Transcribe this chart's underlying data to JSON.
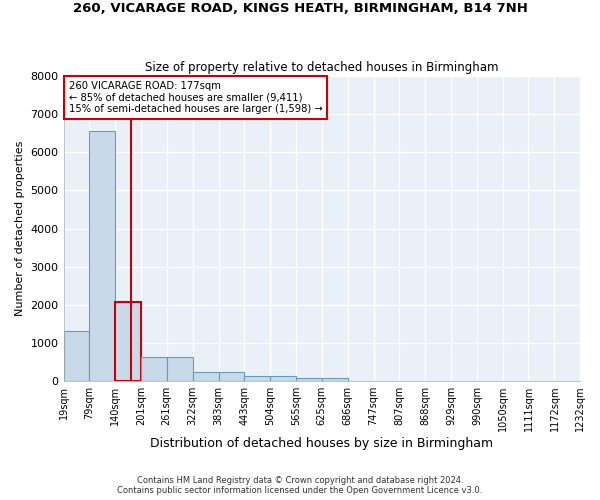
{
  "title1": "260, VICARAGE ROAD, KINGS HEATH, BIRMINGHAM, B14 7NH",
  "title2": "Size of property relative to detached houses in Birmingham",
  "xlabel": "Distribution of detached houses by size in Birmingham",
  "ylabel": "Number of detached properties",
  "footnote1": "Contains HM Land Registry data © Crown copyright and database right 2024.",
  "footnote2": "Contains public sector information licensed under the Open Government Licence v3.0.",
  "annotation_line1": "260 VICARAGE ROAD: 177sqm",
  "annotation_line2": "← 85% of detached houses are smaller (9,411)",
  "annotation_line3": "15% of semi-detached houses are larger (1,598) →",
  "bar_edges": [
    19,
    79,
    140,
    201,
    261,
    322,
    383,
    443,
    504,
    565,
    625,
    686,
    747,
    807,
    868,
    929,
    990,
    1050,
    1111,
    1172,
    1232
  ],
  "bar_heights": [
    1310,
    6560,
    2080,
    640,
    640,
    250,
    250,
    130,
    130,
    80,
    80,
    0,
    0,
    0,
    0,
    0,
    0,
    0,
    0,
    0,
    0
  ],
  "bar_color": "#c8d9ea",
  "bar_edge_color": "#6b9ab8",
  "highlight_bin_index": 2,
  "highlight_edge_color": "#cc0000",
  "ylim": [
    0,
    8000
  ],
  "yticks": [
    0,
    1000,
    2000,
    3000,
    4000,
    5000,
    6000,
    7000,
    8000
  ],
  "fig_bg_color": "#ffffff",
  "plot_bg_color": "#eaf0f8",
  "grid_color": "#ffffff",
  "property_sqm": 177,
  "red_line_color": "#cc0000"
}
